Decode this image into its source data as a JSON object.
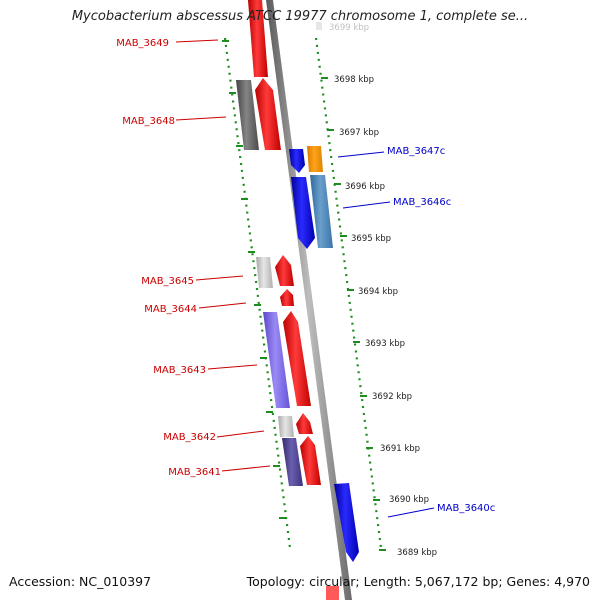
{
  "title": "Mycobacterium abscessus ATCC 19977 chromosome 1, complete se...",
  "accession": "Accession: NC_010397",
  "summary": "Topology: circular; Length: 5,067,172 bp; Genes: 4,970",
  "scale_top_partial": "3699 kbp",
  "scale_ticks": [
    "3698 kbp",
    "3697 kbp",
    "3696 kbp",
    "3695 kbp",
    "3694 kbp",
    "3693 kbp",
    "3692 kbp",
    "3691 kbp",
    "3690 kbp",
    "3689 kbp"
  ],
  "forward_genes": [
    "MAB_3649",
    "MAB_3648",
    "MAB_3645",
    "MAB_3644",
    "MAB_3643",
    "MAB_3642",
    "MAB_3641"
  ],
  "reverse_genes": [
    "MAB_3647c",
    "MAB_3646c",
    "MAB_3640c"
  ],
  "colors": {
    "forward_label": "#cc0000",
    "reverse_label": "#0000cc",
    "gene_red": "#ff0000",
    "gene_blue": "#0000ee",
    "gene_orange": "#ff9900",
    "gene_steel": "#4682b4",
    "cog_gray": "#666666",
    "cog_light": "#c8c8c8",
    "cog_purple": "#7b68ee",
    "cog_darkslate": "#483d8b",
    "backbone": "#8a8a8a",
    "dotted_guides": "#1e8c1e"
  }
}
